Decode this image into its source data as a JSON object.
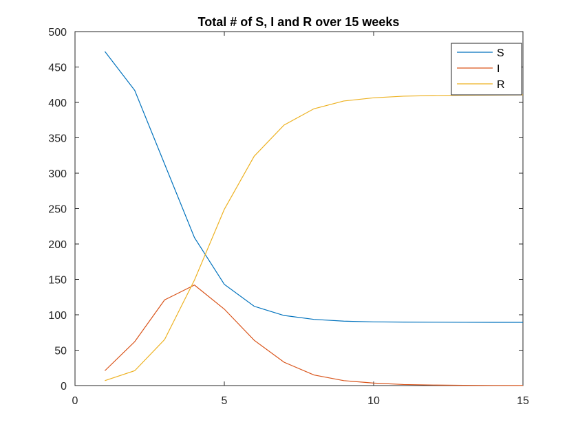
{
  "chart_data": {
    "type": "line",
    "title": "Total # of S, I and R over 15 weeks",
    "xlabel": "",
    "ylabel": "",
    "xlim": [
      0,
      15
    ],
    "ylim": [
      0,
      500
    ],
    "xticks": [
      0,
      5,
      10,
      15
    ],
    "yticks": [
      0,
      50,
      100,
      150,
      200,
      250,
      300,
      350,
      400,
      450,
      500
    ],
    "grid": false,
    "legend_position": "top-right",
    "x": [
      1,
      2,
      3,
      4,
      5,
      6,
      7,
      8,
      9,
      10,
      11,
      12,
      13,
      14,
      15
    ],
    "series": [
      {
        "name": "S",
        "color": "#0072BD",
        "values": [
          472,
          417,
          313,
          209,
          143,
          112,
          99,
          93.5,
          91,
          90,
          89.7,
          89.5,
          89.4,
          89.3,
          89.3
        ]
      },
      {
        "name": "I",
        "color": "#D95319",
        "values": [
          21,
          62,
          121,
          142,
          108,
          64,
          33,
          15,
          7,
          3.5,
          1.5,
          0.8,
          0.4,
          0.2,
          0.1
        ]
      },
      {
        "name": "R",
        "color": "#EDB120",
        "values": [
          7,
          21,
          65,
          149,
          249,
          324,
          368,
          391,
          402,
          406.5,
          408.8,
          409.7,
          410.2,
          410.4,
          410.6
        ]
      }
    ]
  }
}
